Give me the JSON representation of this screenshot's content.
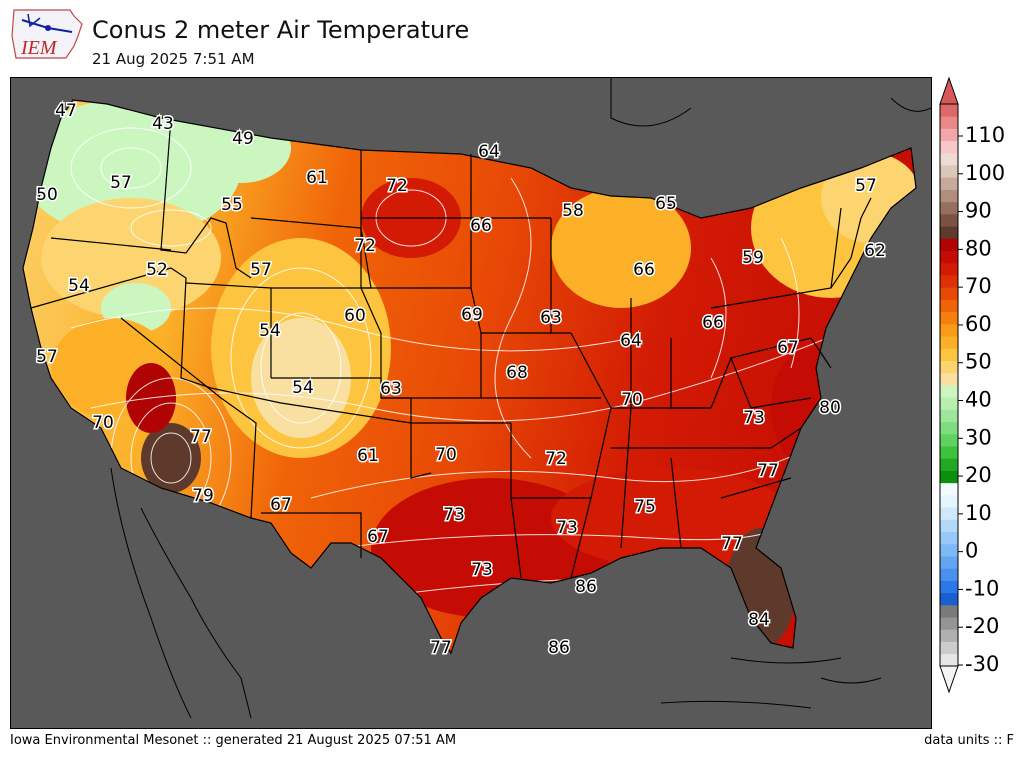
{
  "header": {
    "logo_text": "IEM",
    "title": "Conus 2 meter Air Temperature",
    "subtitle": "21 Aug 2025 7:51 AM"
  },
  "footer": {
    "left": "Iowa Environmental Mesonet :: generated 21 August 2025 07:51 AM",
    "right": "data units :: F"
  },
  "colors": {
    "background": "#595959",
    "state_lines": "#000000",
    "contours": "#ffffff"
  },
  "labels": [
    {
      "value": "47"
    },
    {
      "value": "43"
    },
    {
      "value": "49"
    },
    {
      "value": "64"
    },
    {
      "value": "50"
    },
    {
      "value": "57"
    },
    {
      "value": "61"
    },
    {
      "value": "72"
    },
    {
      "value": "55"
    },
    {
      "value": "58"
    },
    {
      "value": "65"
    },
    {
      "value": "57"
    },
    {
      "value": "66"
    },
    {
      "value": "72"
    },
    {
      "value": "52"
    },
    {
      "value": "57"
    },
    {
      "value": "59"
    },
    {
      "value": "62"
    },
    {
      "value": "54"
    },
    {
      "value": "66"
    },
    {
      "value": "60"
    },
    {
      "value": "69"
    },
    {
      "value": "63"
    },
    {
      "value": "54"
    },
    {
      "value": "64"
    },
    {
      "value": "66"
    },
    {
      "value": "67"
    },
    {
      "value": "57"
    },
    {
      "value": "54"
    },
    {
      "value": "63"
    },
    {
      "value": "68"
    },
    {
      "value": "70"
    },
    {
      "value": "80"
    },
    {
      "value": "70"
    },
    {
      "value": "77"
    },
    {
      "value": "73"
    },
    {
      "value": "70"
    },
    {
      "value": "61"
    },
    {
      "value": "72"
    },
    {
      "value": "77"
    },
    {
      "value": "79"
    },
    {
      "value": "67"
    },
    {
      "value": "73"
    },
    {
      "value": "75"
    },
    {
      "value": "73"
    },
    {
      "value": "67"
    },
    {
      "value": "77"
    },
    {
      "value": "73"
    },
    {
      "value": "86"
    },
    {
      "value": "84"
    },
    {
      "value": "77"
    },
    {
      "value": "86"
    }
  ],
  "legend": {
    "ticks": [
      "110",
      "100",
      "90",
      "80",
      "70",
      "60",
      "50",
      "40",
      "30",
      "20",
      "10",
      "0",
      "-10",
      "-20",
      "-30"
    ],
    "bins": [
      {
        "c": "#e6e6e6"
      },
      {
        "c": "#cccccc"
      },
      {
        "c": "#b0b0b0"
      },
      {
        "c": "#959595"
      },
      {
        "c": "#7a7a7a"
      },
      {
        "c": "#1a5fd0"
      },
      {
        "c": "#2c78e6"
      },
      {
        "c": "#4a90ee"
      },
      {
        "c": "#62a6f2"
      },
      {
        "c": "#7eb8f5"
      },
      {
        "c": "#98c8f7"
      },
      {
        "c": "#b2d8fa"
      },
      {
        "c": "#cfe8fb"
      },
      {
        "c": "#e6f6fd"
      },
      {
        "c": "#f2fcff"
      },
      {
        "c": "#0c8f0c"
      },
      {
        "c": "#23a823"
      },
      {
        "c": "#3ec23e"
      },
      {
        "c": "#5fd25f"
      },
      {
        "c": "#80dc80"
      },
      {
        "c": "#9ee69e"
      },
      {
        "c": "#b8efb0"
      },
      {
        "c": "#ccf6c0"
      },
      {
        "c": "#f9e0a0"
      },
      {
        "c": "#fcd470"
      },
      {
        "c": "#fdc440"
      },
      {
        "c": "#fbb028"
      },
      {
        "c": "#f99a1a"
      },
      {
        "c": "#f5800e"
      },
      {
        "c": "#f06408"
      },
      {
        "c": "#e84a06"
      },
      {
        "c": "#de3004"
      },
      {
        "c": "#d21a04"
      },
      {
        "c": "#c40c04"
      },
      {
        "c": "#b00404"
      },
      {
        "c": "#5e3a2c"
      },
      {
        "c": "#7a5244"
      },
      {
        "c": "#96705e"
      },
      {
        "c": "#b08e7c"
      },
      {
        "c": "#c8aa9a"
      },
      {
        "c": "#dcc6b8"
      },
      {
        "c": "#eedcd4"
      },
      {
        "c": "#f8c8c8"
      },
      {
        "c": "#f2a8a8"
      },
      {
        "c": "#e88888"
      },
      {
        "c": "#dc6868"
      }
    ]
  }
}
